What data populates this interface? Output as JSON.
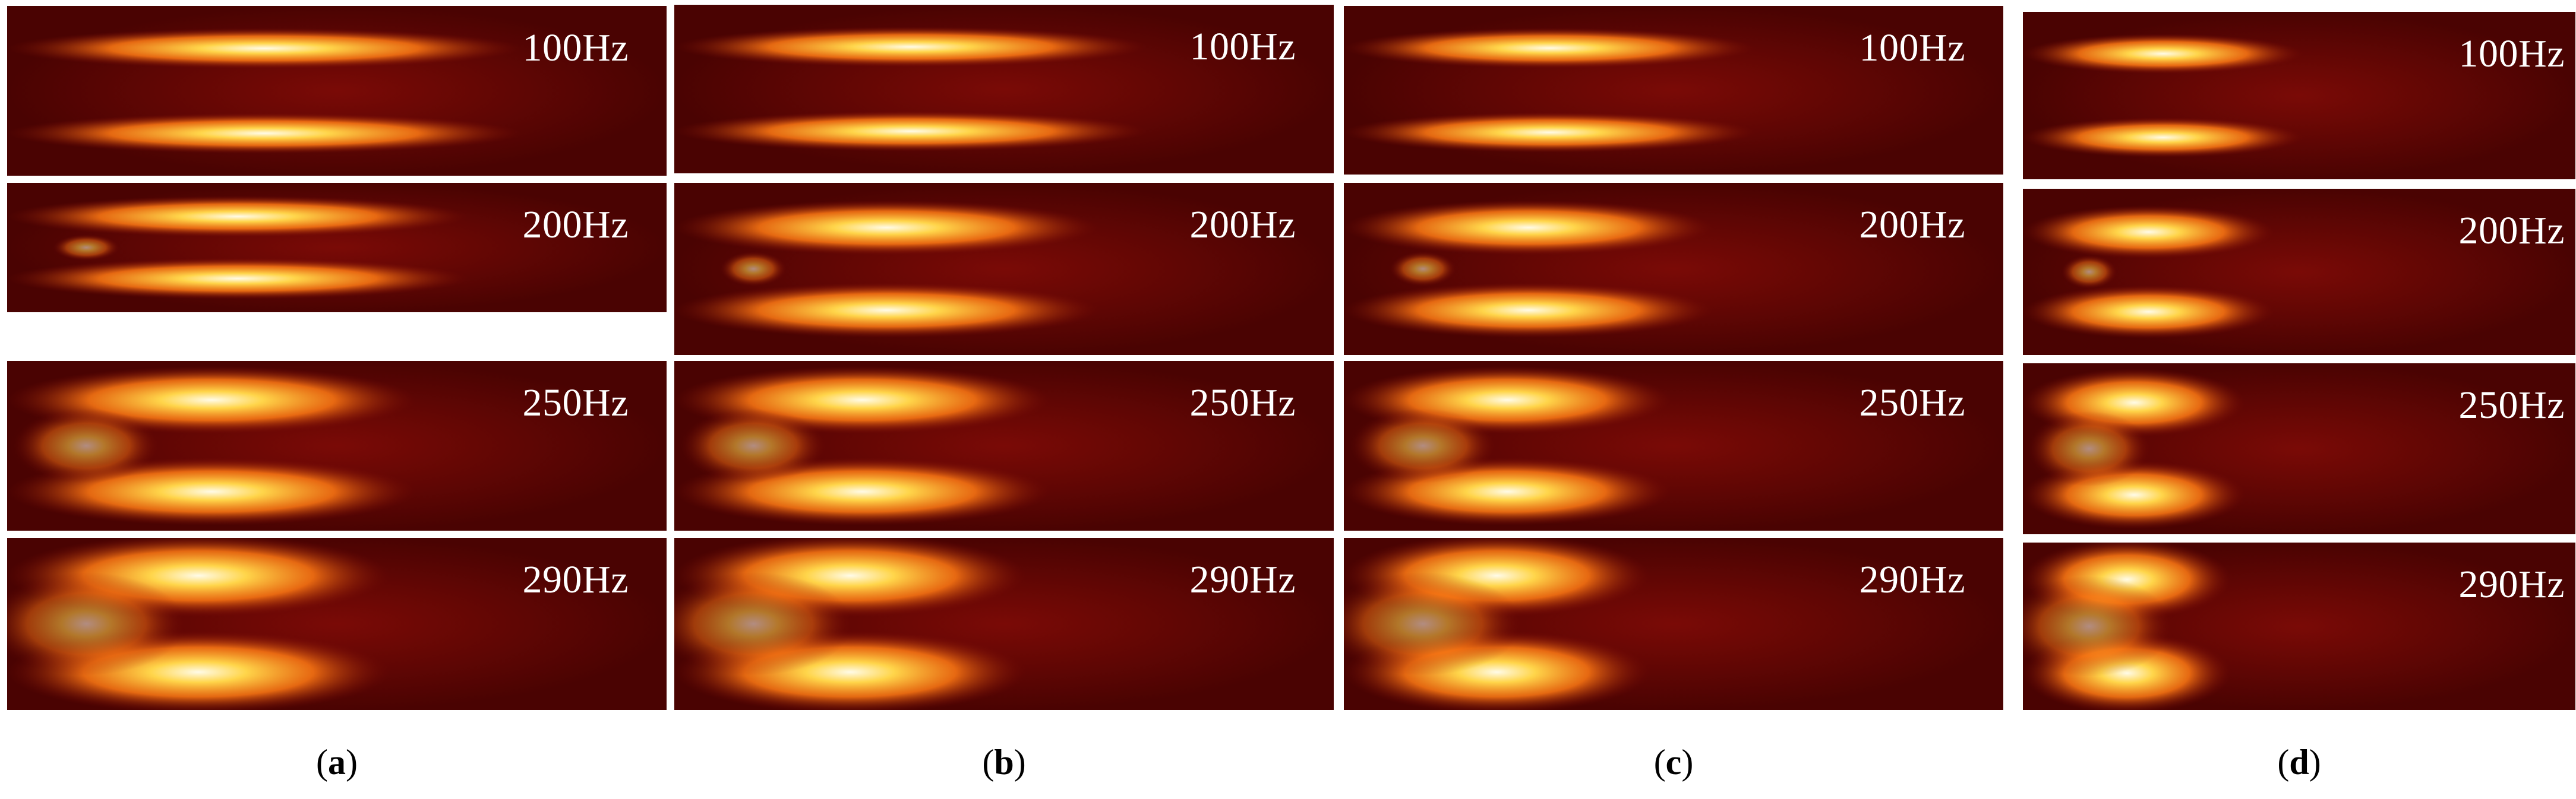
{
  "colors": {
    "background": "#7a0a06",
    "outer": "#4a0302",
    "core": "#fffbe8",
    "hot": "#ffd54a",
    "warm": "#ff7a14",
    "label": "#ffffff"
  },
  "panels": [
    {
      "caption_letter": "a",
      "rows": [
        {
          "frequency": "100Hz"
        },
        {
          "frequency": "200Hz"
        },
        {
          "frequency": "250Hz"
        },
        {
          "frequency": "290Hz"
        }
      ]
    },
    {
      "caption_letter": "b",
      "rows": [
        {
          "frequency": "100Hz"
        },
        {
          "frequency": "200Hz"
        },
        {
          "frequency": "250Hz"
        },
        {
          "frequency": "290Hz"
        }
      ]
    },
    {
      "caption_letter": "c",
      "rows": [
        {
          "frequency": "100Hz"
        },
        {
          "frequency": "200Hz"
        },
        {
          "frequency": "250Hz"
        },
        {
          "frequency": "290Hz"
        }
      ]
    },
    {
      "caption_letter": "d",
      "rows": [
        {
          "frequency": "100Hz"
        },
        {
          "frequency": "200Hz"
        },
        {
          "frequency": "250Hz"
        },
        {
          "frequency": "290Hz"
        }
      ]
    }
  ]
}
